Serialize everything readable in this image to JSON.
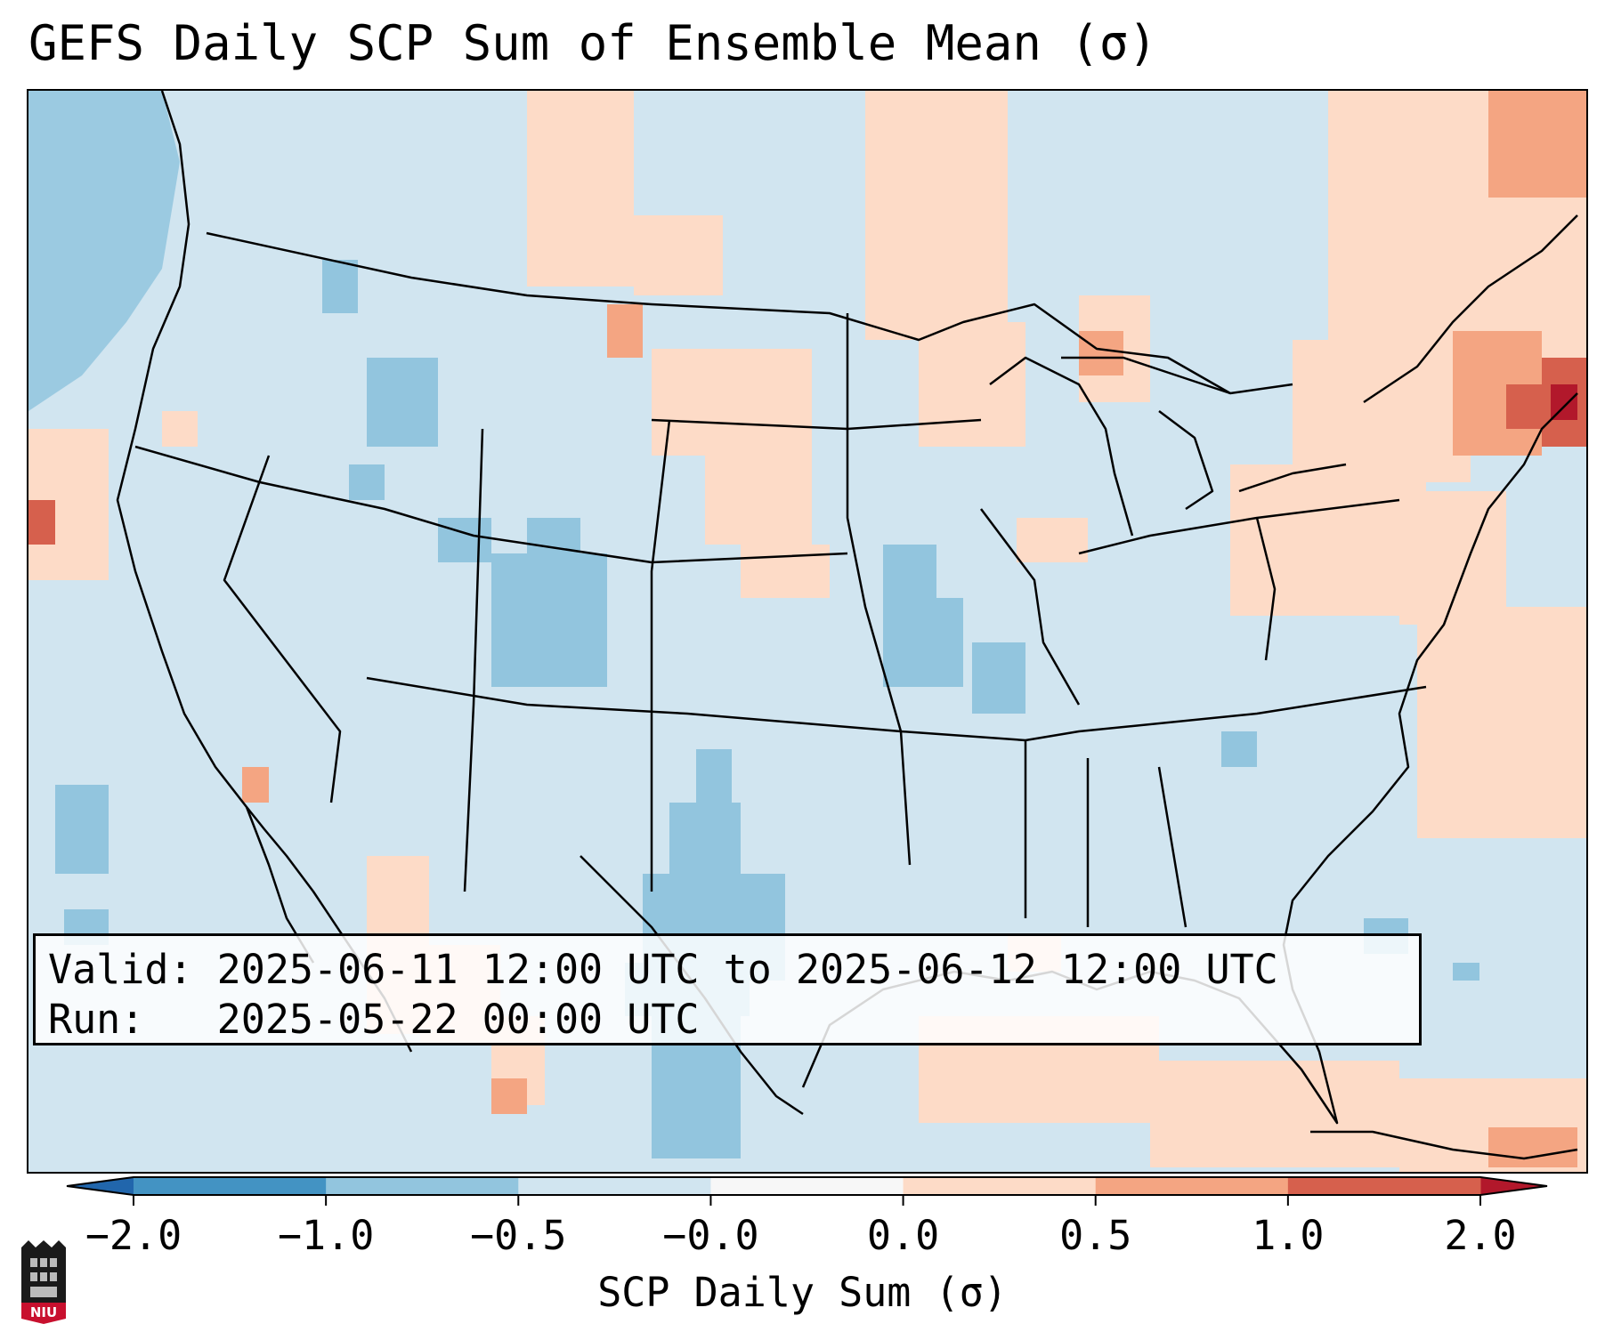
{
  "title": "GEFS Daily SCP Sum of Ensemble Mean (σ)",
  "info": {
    "valid_label": "Valid:",
    "valid_value": "2025-06-11 12:00 UTC to 2025-06-12 12:00 UTC",
    "run_label": "Run:",
    "run_value": "2025-05-22 00:00 UTC"
  },
  "colorbar": {
    "label": "SCP Daily Sum (σ)",
    "ticks": [
      "−2.0",
      "−1.0",
      "−0.5",
      "−0.0",
      "0.0",
      "0.5",
      "1.0",
      "2.0"
    ],
    "colors": [
      "#4393c3",
      "#92c5de",
      "#d1e5f0",
      "#f7f7f7",
      "#fddbc7",
      "#f4a582",
      "#d6604d"
    ],
    "extend_low_color": "#2166ac",
    "extend_high_color": "#b2182b"
  },
  "logo": {
    "text": "NIU",
    "color": "#c8102e"
  }
}
